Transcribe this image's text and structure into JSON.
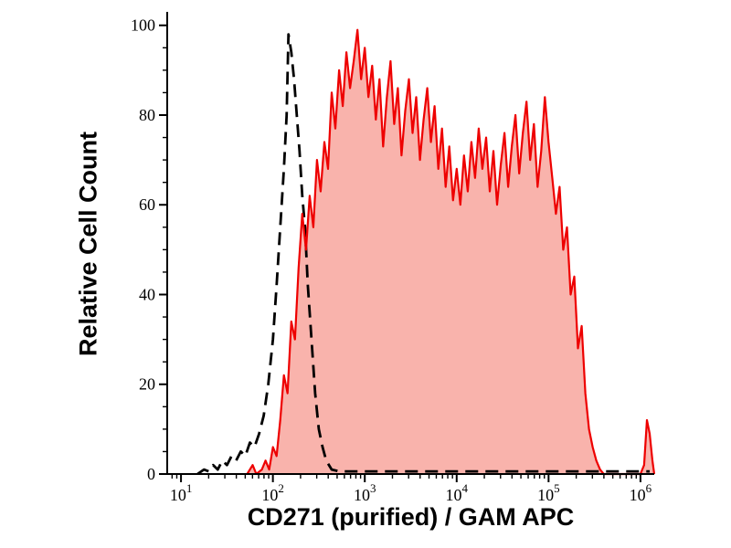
{
  "chart_data": {
    "type": "area",
    "title": "",
    "xlabel": "CD271 (purified) / GAM APC",
    "ylabel": "Relative Cell Count",
    "x_scale": "log10",
    "xlim_log10": [
      0.85,
      6.15
    ],
    "ylim": [
      0,
      103
    ],
    "grid": false,
    "legend": "none",
    "y_ticks": [
      0,
      20,
      40,
      60,
      80,
      100
    ],
    "x_tick_base": "10",
    "x_tick_exponents": [
      1,
      2,
      3,
      4,
      5,
      6
    ],
    "axis_color": "#000000",
    "series": [
      {
        "name": "black-dashed-control-histogram",
        "color": "#000000",
        "style": "dashed",
        "width": 2.8,
        "points": [
          [
            1.18,
            0
          ],
          [
            1.25,
            1
          ],
          [
            1.3,
            0.6
          ],
          [
            1.35,
            2
          ],
          [
            1.4,
            1
          ],
          [
            1.45,
            3
          ],
          [
            1.5,
            2
          ],
          [
            1.55,
            4
          ],
          [
            1.6,
            3
          ],
          [
            1.65,
            5
          ],
          [
            1.7,
            4
          ],
          [
            1.75,
            7
          ],
          [
            1.8,
            6
          ],
          [
            1.85,
            9
          ],
          [
            1.9,
            13
          ],
          [
            1.95,
            20
          ],
          [
            2.0,
            30
          ],
          [
            2.04,
            42
          ],
          [
            2.08,
            55
          ],
          [
            2.12,
            68
          ],
          [
            2.15,
            80
          ],
          [
            2.17,
            98
          ],
          [
            2.2,
            94
          ],
          [
            2.23,
            88
          ],
          [
            2.26,
            80
          ],
          [
            2.29,
            72
          ],
          [
            2.32,
            62
          ],
          [
            2.35,
            55
          ],
          [
            2.38,
            42
          ],
          [
            2.42,
            30
          ],
          [
            2.46,
            18
          ],
          [
            2.5,
            10
          ],
          [
            2.54,
            6
          ],
          [
            2.58,
            3
          ],
          [
            2.64,
            1
          ],
          [
            2.72,
            0.6
          ],
          [
            6.1,
            0.6
          ]
        ]
      },
      {
        "name": "red-filled-stained-histogram",
        "color": "#ee0000",
        "fill": "#f9b3ac",
        "style": "solid",
        "width": 2.2,
        "points": [
          [
            1.72,
            0
          ],
          [
            1.78,
            2
          ],
          [
            1.82,
            0
          ],
          [
            1.88,
            1
          ],
          [
            1.92,
            3
          ],
          [
            1.96,
            1
          ],
          [
            2.0,
            6
          ],
          [
            2.04,
            4
          ],
          [
            2.08,
            12
          ],
          [
            2.12,
            22
          ],
          [
            2.16,
            18
          ],
          [
            2.2,
            34
          ],
          [
            2.24,
            30
          ],
          [
            2.28,
            46
          ],
          [
            2.32,
            58
          ],
          [
            2.36,
            50
          ],
          [
            2.4,
            62
          ],
          [
            2.44,
            55
          ],
          [
            2.48,
            70
          ],
          [
            2.52,
            63
          ],
          [
            2.56,
            74
          ],
          [
            2.6,
            68
          ],
          [
            2.64,
            85
          ],
          [
            2.68,
            77
          ],
          [
            2.72,
            90
          ],
          [
            2.76,
            82
          ],
          [
            2.8,
            94
          ],
          [
            2.84,
            86
          ],
          [
            2.88,
            92
          ],
          [
            2.92,
            99
          ],
          [
            2.96,
            88
          ],
          [
            3.0,
            95
          ],
          [
            3.04,
            84
          ],
          [
            3.08,
            91
          ],
          [
            3.12,
            79
          ],
          [
            3.16,
            88
          ],
          [
            3.2,
            73
          ],
          [
            3.24,
            84
          ],
          [
            3.28,
            92
          ],
          [
            3.32,
            78
          ],
          [
            3.36,
            86
          ],
          [
            3.4,
            71
          ],
          [
            3.44,
            81
          ],
          [
            3.48,
            88
          ],
          [
            3.52,
            76
          ],
          [
            3.56,
            84
          ],
          [
            3.6,
            70
          ],
          [
            3.64,
            79
          ],
          [
            3.68,
            86
          ],
          [
            3.72,
            74
          ],
          [
            3.76,
            82
          ],
          [
            3.8,
            68
          ],
          [
            3.84,
            77
          ],
          [
            3.88,
            64
          ],
          [
            3.92,
            73
          ],
          [
            3.96,
            61
          ],
          [
            4.0,
            68
          ],
          [
            4.04,
            60
          ],
          [
            4.08,
            71
          ],
          [
            4.12,
            63
          ],
          [
            4.16,
            74
          ],
          [
            4.2,
            66
          ],
          [
            4.24,
            77
          ],
          [
            4.28,
            68
          ],
          [
            4.32,
            75
          ],
          [
            4.36,
            63
          ],
          [
            4.4,
            72
          ],
          [
            4.44,
            60
          ],
          [
            4.48,
            69
          ],
          [
            4.52,
            76
          ],
          [
            4.56,
            64
          ],
          [
            4.6,
            73
          ],
          [
            4.64,
            80
          ],
          [
            4.68,
            67
          ],
          [
            4.72,
            76
          ],
          [
            4.76,
            83
          ],
          [
            4.8,
            70
          ],
          [
            4.84,
            78
          ],
          [
            4.88,
            64
          ],
          [
            4.92,
            72
          ],
          [
            4.96,
            84
          ],
          [
            5.0,
            74
          ],
          [
            5.04,
            66
          ],
          [
            5.08,
            58
          ],
          [
            5.12,
            64
          ],
          [
            5.16,
            50
          ],
          [
            5.2,
            55
          ],
          [
            5.24,
            40
          ],
          [
            5.28,
            44
          ],
          [
            5.32,
            28
          ],
          [
            5.36,
            33
          ],
          [
            5.4,
            18
          ],
          [
            5.44,
            10
          ],
          [
            5.48,
            6
          ],
          [
            5.52,
            3
          ],
          [
            5.56,
            1
          ],
          [
            5.6,
            0
          ],
          [
            5.8,
            0
          ],
          [
            6.0,
            0
          ],
          [
            6.04,
            2
          ],
          [
            6.07,
            12
          ],
          [
            6.1,
            9
          ],
          [
            6.13,
            3
          ],
          [
            6.15,
            0
          ]
        ]
      }
    ]
  }
}
